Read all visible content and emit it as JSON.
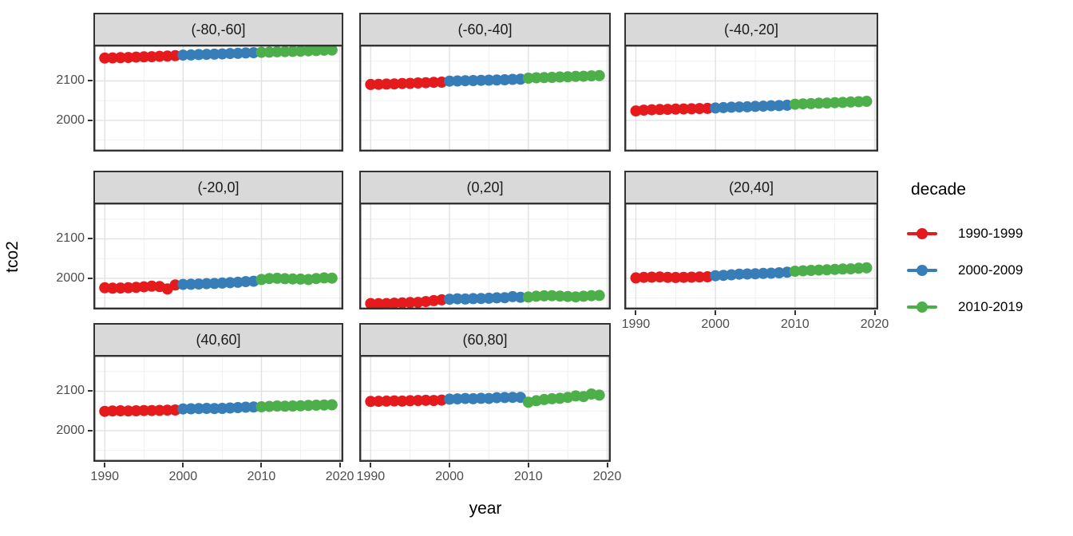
{
  "chart_data": {
    "type": "scatter",
    "title": "",
    "xlabel": "year",
    "ylabel": "tco2",
    "facet_variable": "latitude_band",
    "grid": true,
    "years": [
      1990,
      1991,
      1992,
      1993,
      1994,
      1995,
      1996,
      1997,
      1998,
      1999,
      2000,
      2001,
      2002,
      2003,
      2004,
      2005,
      2006,
      2007,
      2008,
      2009,
      2010,
      2011,
      2012,
      2013,
      2014,
      2015,
      2016,
      2017,
      2018,
      2019
    ],
    "x_ticks": [
      1990,
      2000,
      2010,
      2020
    ],
    "x_minor_gridlines": [
      1995,
      2005,
      2015
    ],
    "y_ticks": [
      2000,
      2100
    ],
    "y_minor_gridlines": [
      1950,
      2050,
      2150
    ],
    "xlim": [
      1988.55,
      2020.45
    ],
    "ylim": [
      1921,
      2192
    ],
    "legend": {
      "title": "decade",
      "position": "right",
      "entries": [
        {
          "label": "1990-1999",
          "color": "#E41A1C",
          "year_from": 1990,
          "year_to": 1999
        },
        {
          "label": "2000-2009",
          "color": "#377EB8",
          "year_from": 2000,
          "year_to": 2009
        },
        {
          "label": "2010-2019",
          "color": "#4DAF4A",
          "year_from": 2010,
          "year_to": 2019
        }
      ]
    },
    "colors": {
      "panel_border": "#333333",
      "strip_fill": "#D9D9D9",
      "grid_major": "#E2E2E2",
      "grid_minor": "#F0F0F0",
      "tick_label": "#4D4D4D"
    },
    "facets": [
      {
        "label": "(-80,-60]",
        "values": [
          2158,
          2158.5,
          2159,
          2159.5,
          2160.5,
          2161,
          2161.5,
          2162.5,
          2163,
          2164,
          2165.5,
          2166,
          2167,
          2167.5,
          2168,
          2168.5,
          2169.5,
          2170,
          2171,
          2171.5,
          2172.5,
          2173,
          2174,
          2174.5,
          2175,
          2175.5,
          2176.5,
          2177,
          2178,
          2178.5
        ]
      },
      {
        "label": "(-60,-40]",
        "values": [
          2091,
          2091.5,
          2092,
          2092.5,
          2093.5,
          2094,
          2095,
          2095.5,
          2096.5,
          2097,
          2099.5,
          2100,
          2100.5,
          2101,
          2101.5,
          2102,
          2102.5,
          2103,
          2104,
          2104.5,
          2107,
          2108,
          2108.5,
          2109,
          2110,
          2110.5,
          2111.5,
          2112,
          2113,
          2113.5
        ]
      },
      {
        "label": "(-40,-20]",
        "values": [
          2024,
          2026,
          2027,
          2027.5,
          2028,
          2028.5,
          2029,
          2029.5,
          2030,
          2030.5,
          2031.5,
          2032.5,
          2033.5,
          2034,
          2034.5,
          2035.5,
          2036,
          2037,
          2037.5,
          2038.5,
          2041,
          2042,
          2042.5,
          2043.5,
          2044,
          2045,
          2045.5,
          2046.5,
          2047.5,
          2048.5
        ]
      },
      {
        "label": "(-20,0]",
        "values": [
          1976,
          1975,
          1975.5,
          1976,
          1977,
          1978.5,
          1980,
          1979,
          1973,
          1983,
          1984.5,
          1985,
          1985.5,
          1986.5,
          1987,
          1988,
          1989,
          1990,
          1991.5,
          1992.5,
          1997,
          1999.5,
          2000,
          1999,
          1998.5,
          1998,
          1997,
          1999.5,
          2001,
          2000.5
        ]
      },
      {
        "label": "(0,20]",
        "values": [
          1936,
          1935.5,
          1936,
          1937,
          1937.5,
          1938.5,
          1939,
          1941,
          1943.5,
          1945.5,
          1947,
          1948,
          1947.5,
          1948.5,
          1949,
          1949.5,
          1950.5,
          1951,
          1953.5,
          1952,
          1952.5,
          1954.5,
          1955.5,
          1956,
          1955,
          1954,
          1953,
          1954.5,
          1956,
          1956.5
        ]
      },
      {
        "label": "(20,40]",
        "values": [
          2001,
          2002.5,
          2003,
          2003.5,
          2002.5,
          2002,
          2002.5,
          2003,
          2003.5,
          2004,
          2006.5,
          2007.5,
          2009,
          2010.5,
          2011,
          2011.5,
          2012.5,
          2013,
          2014,
          2015.5,
          2018,
          2019,
          2020,
          2021,
          2021.5,
          2022.5,
          2023.5,
          2024,
          2025.5,
          2026.5
        ]
      },
      {
        "label": "(40,60]",
        "values": [
          2049,
          2050,
          2050.5,
          2050,
          2050.5,
          2051,
          2051,
          2051.5,
          2052,
          2052.5,
          2055,
          2055.5,
          2056,
          2056.5,
          2056,
          2056.5,
          2057.5,
          2058.5,
          2059.5,
          2060,
          2060.5,
          2061.5,
          2062.5,
          2062,
          2062.5,
          2063,
          2064,
          2064.5,
          2065,
          2065.5
        ]
      },
      {
        "label": "(60,80]",
        "values": [
          2074,
          2074.5,
          2075,
          2075.5,
          2075,
          2076,
          2076.5,
          2077,
          2076.5,
          2077.5,
          2080,
          2080.5,
          2081.5,
          2081,
          2082,
          2081.5,
          2083.5,
          2084,
          2084.5,
          2084.5,
          2072,
          2076,
          2079,
          2081,
          2082,
          2084.5,
          2088,
          2086.5,
          2093,
          2090
        ]
      }
    ]
  }
}
